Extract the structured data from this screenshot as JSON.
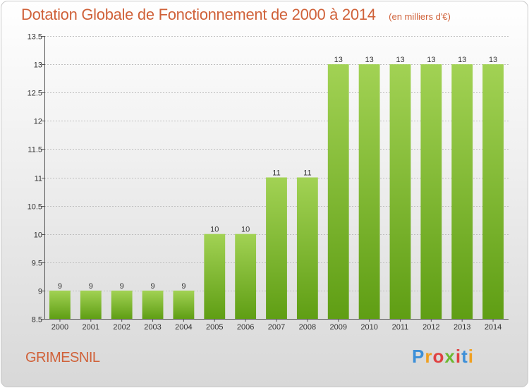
{
  "title": "Dotation Globale de Fonctionnement de 2000 à 2014",
  "unit": "(en milliers d'€)",
  "place": "GRIMESNIL",
  "logo": {
    "text": "Proxiti",
    "letters": [
      "P",
      "r",
      "o",
      "x",
      "i",
      "t",
      "i"
    ],
    "colors": [
      "#3c8fd8",
      "#f0a020",
      "#e04040",
      "#6cb830",
      "#e04040",
      "#3c8fd8",
      "#f0a020"
    ]
  },
  "colors": {
    "bar_top": "#a2d254",
    "bar_bottom": "#5f9e14",
    "title": "#d0623a",
    "grid": "#bfbfbf"
  },
  "chart_data": {
    "type": "bar",
    "categories": [
      "2000",
      "2001",
      "2002",
      "2003",
      "2004",
      "2005",
      "2006",
      "2007",
      "2008",
      "2009",
      "2010",
      "2011",
      "2012",
      "2013",
      "2014"
    ],
    "values": [
      9,
      9,
      9,
      9,
      9,
      10,
      10,
      11,
      11,
      13,
      13,
      13,
      13,
      13,
      13
    ],
    "data_labels": [
      "9",
      "9",
      "9",
      "9",
      "9",
      "10",
      "10",
      "11",
      "11",
      "13",
      "13",
      "13",
      "13",
      "13",
      "13"
    ],
    "yticks": [
      8.5,
      9,
      9.5,
      10,
      10.5,
      11,
      11.5,
      12,
      12.5,
      13,
      13.5
    ],
    "ytick_labels": [
      "8.5",
      "9",
      "9.5",
      "10",
      "10.5",
      "11",
      "11.5",
      "12",
      "12.5",
      "13",
      "13.5"
    ],
    "ylim": [
      8.5,
      13.5
    ],
    "grid": true,
    "title": "Dotation Globale de Fonctionnement de 2000 à 2014",
    "xlabel": "",
    "ylabel": ""
  }
}
